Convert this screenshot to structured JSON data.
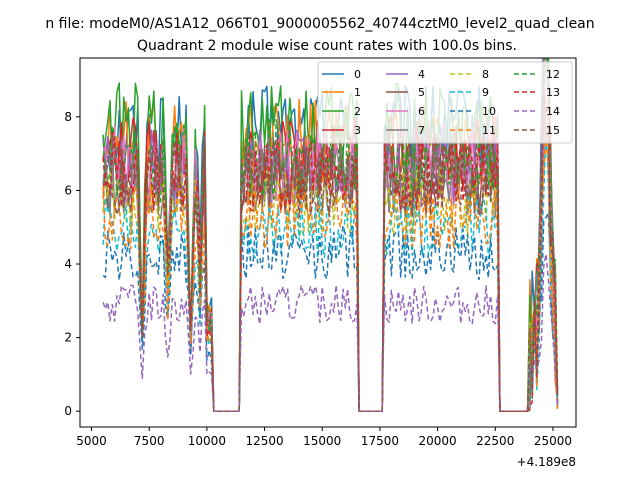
{
  "figure": {
    "suptitle": "n file: modeM0/AS1A12_066T01_9000005562_40744cztM0_level2_quad_clean",
    "title": "Quadrant 2 module wise count rates with 100.0s bins."
  },
  "chart_data": {
    "type": "line",
    "title": "Quadrant 2 module wise count rates with 100.0s bins.",
    "xlabel": "",
    "ylabel": "",
    "x_offset_label": "+4.189e8",
    "xlim": [
      4500,
      26000
    ],
    "ylim": [
      -0.43,
      9.6
    ],
    "xticks": [
      5000,
      7500,
      10000,
      12500,
      15000,
      17500,
      20000,
      22500,
      25000
    ],
    "yticks": [
      0,
      2,
      4,
      6,
      8
    ],
    "legend": {
      "position": "top-right",
      "columns": 4
    },
    "x_segments": [
      [
        5500,
        10200
      ],
      [
        11500,
        16500
      ],
      [
        17700,
        22600
      ],
      [
        24000,
        25200
      ]
    ],
    "gaps_at_zero": [
      [
        10300,
        11400
      ],
      [
        16600,
        17600
      ],
      [
        22700,
        23900
      ]
    ],
    "series": [
      {
        "name": "0",
        "color": "#1f77b4",
        "dash": "solid",
        "level": 7.6
      },
      {
        "name": "1",
        "color": "#ff7f0e",
        "dash": "solid",
        "level": 7.3
      },
      {
        "name": "2",
        "color": "#2ca02c",
        "dash": "solid",
        "level": 7.7
      },
      {
        "name": "3",
        "color": "#d62728",
        "dash": "solid",
        "level": 6.9
      },
      {
        "name": "4",
        "color": "#9467bd",
        "dash": "solid",
        "level": 6.6
      },
      {
        "name": "5",
        "color": "#8c564b",
        "dash": "solid",
        "level": 6.4
      },
      {
        "name": "6",
        "color": "#e377c2",
        "dash": "solid",
        "level": 6.7
      },
      {
        "name": "7",
        "color": "#7f7f7f",
        "dash": "solid",
        "level": 6.2
      },
      {
        "name": "8",
        "color": "#bcbd22",
        "dash": "dashed",
        "level": 5.7
      },
      {
        "name": "9",
        "color": "#17becf",
        "dash": "dashed",
        "level": 5.0
      },
      {
        "name": "10",
        "color": "#1f77b4",
        "dash": "dashed",
        "level": 4.3
      },
      {
        "name": "11",
        "color": "#ff7f0e",
        "dash": "dashed",
        "level": 5.3
      },
      {
        "name": "12",
        "color": "#2ca02c",
        "dash": "dashed",
        "level": 6.8
      },
      {
        "name": "13",
        "color": "#d62728",
        "dash": "dashed",
        "level": 6.5
      },
      {
        "name": "14",
        "color": "#9467bd",
        "dash": "dashed",
        "level": 2.9
      },
      {
        "name": "15",
        "color": "#8c564b",
        "dash": "dashed",
        "level": 6.3
      }
    ]
  }
}
